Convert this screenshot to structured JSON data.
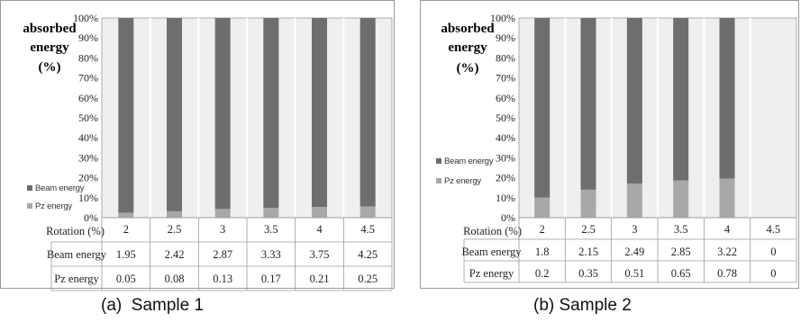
{
  "captions": {
    "left": "(a)  Sample 1",
    "right": "(b) Sample 2"
  },
  "colors": {
    "beam": "#6e6e6e",
    "pz": "#a8a8a8",
    "background": "#efefef",
    "grid": "#ffffff",
    "border": "#9a9a9a"
  },
  "chart_data": [
    {
      "type": "bar",
      "stacked": true,
      "normalized": true,
      "ylabel_lines": [
        "absorbed",
        "energy",
        "(%)"
      ],
      "yticks": [
        "0%",
        "10%",
        "20%",
        "30%",
        "40%",
        "50%",
        "60%",
        "70%",
        "80%",
        "90%",
        "100%"
      ],
      "ylim": [
        0,
        100
      ],
      "xlabel": "Rotation (%)",
      "categories": [
        "2",
        "2.5",
        "3",
        "3.5",
        "4",
        "4.5"
      ],
      "series": [
        {
          "name": "Beam energy",
          "values": [
            1.95,
            2.42,
            2.87,
            3.33,
            3.75,
            4.25
          ]
        },
        {
          "name": "Pz energy",
          "values": [
            0.05,
            0.08,
            0.13,
            0.17,
            0.21,
            0.25
          ]
        }
      ],
      "table_values": [
        [
          "1.95",
          "2.42",
          "2.87",
          "3.33",
          "3.75",
          "4.25"
        ],
        [
          "0.05",
          "0.08",
          "0.13",
          "0.17",
          "0.21",
          "0.25"
        ]
      ],
      "legend_position": "left"
    },
    {
      "type": "bar",
      "stacked": true,
      "normalized": true,
      "ylabel_lines": [
        "absorbed",
        "energy",
        "(%)"
      ],
      "yticks": [
        "0%",
        "10%",
        "20%",
        "30%",
        "40%",
        "50%",
        "60%",
        "70%",
        "80%",
        "90%",
        "100%"
      ],
      "ylim": [
        0,
        100
      ],
      "xlabel": "Rotation (%)",
      "categories": [
        "2",
        "2.5",
        "3",
        "3.5",
        "4",
        "4.5"
      ],
      "series": [
        {
          "name": "Beam energy",
          "values": [
            1.8,
            2.15,
            2.49,
            2.85,
            3.22,
            0
          ]
        },
        {
          "name": "Pz energy",
          "values": [
            0.2,
            0.35,
            0.51,
            0.65,
            0.78,
            0
          ]
        }
      ],
      "table_values": [
        [
          "1.8",
          "2.15",
          "2.49",
          "2.85",
          "3.22",
          "0"
        ],
        [
          "0.2",
          "0.35",
          "0.51",
          "0.65",
          "0.78",
          "0"
        ]
      ],
      "legend_position": "left"
    }
  ]
}
